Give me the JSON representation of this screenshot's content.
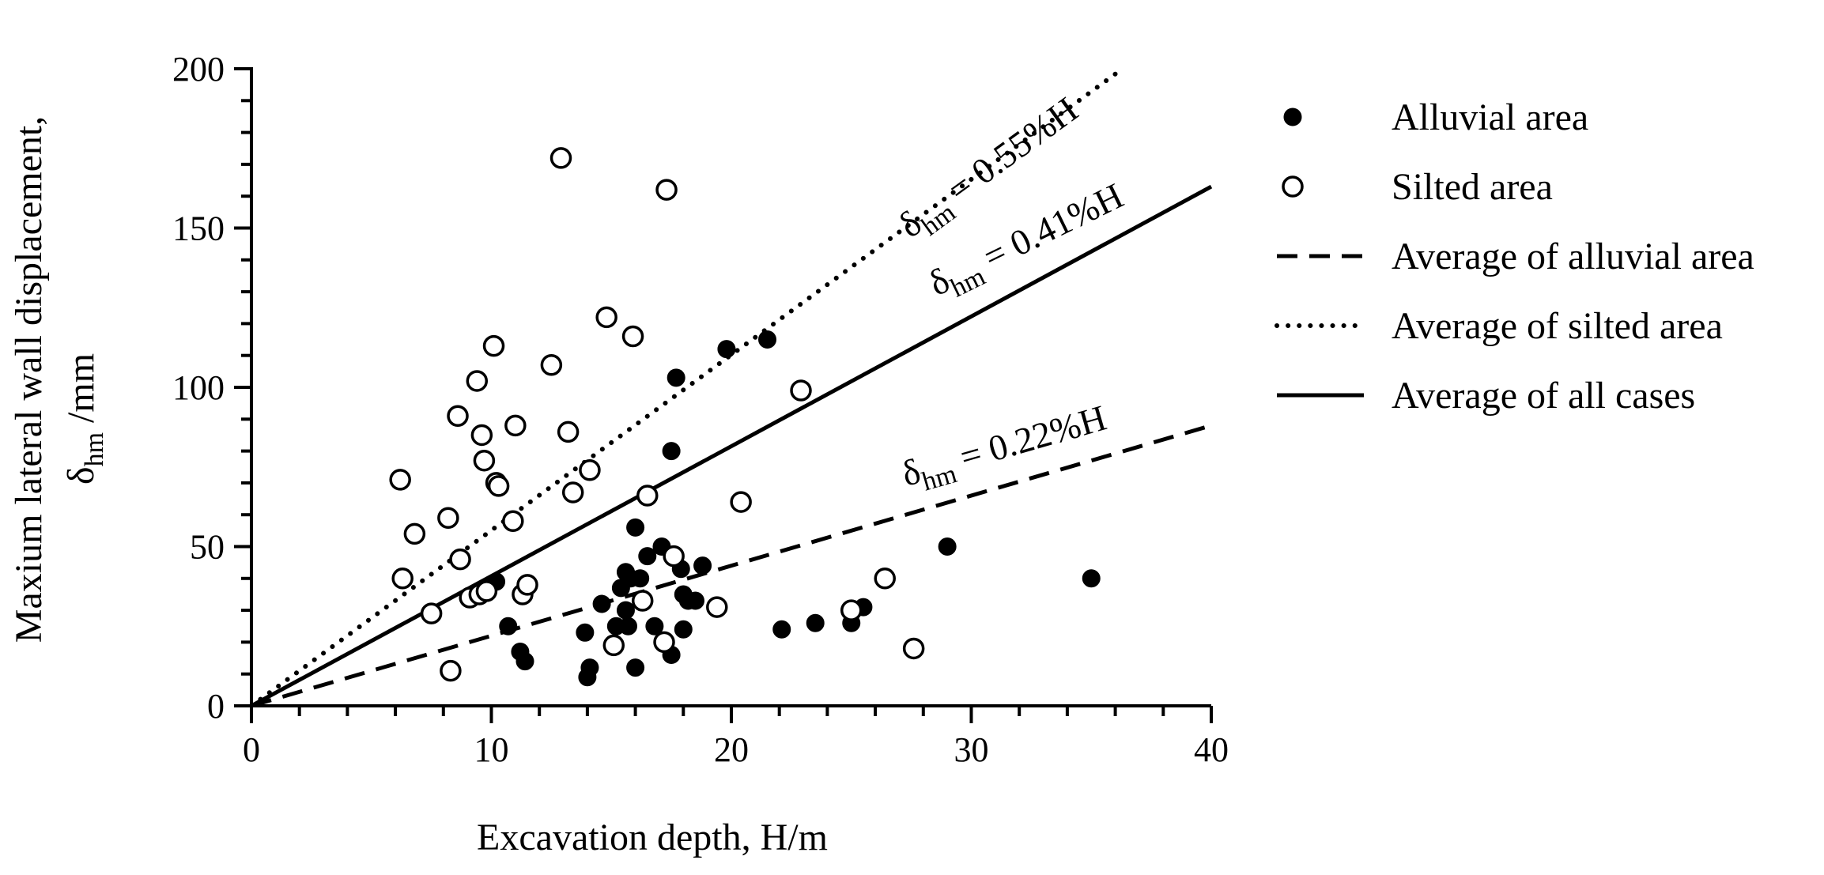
{
  "chart_data": {
    "type": "scatter",
    "xlabel": "Excavation depth,  H/m",
    "ylabel_line1": "Maxium lateral wall displacement,",
    "ylabel_symbol": "δ",
    "ylabel_sub": "hm",
    "ylabel_unit": " /mm",
    "xlim": [
      0,
      40
    ],
    "ylim": [
      0,
      200
    ],
    "x_ticks": [
      0,
      10,
      20,
      30,
      40
    ],
    "y_ticks": [
      0,
      50,
      100,
      150,
      200
    ],
    "x_tick_labels": [
      "0",
      "10",
      "20",
      "30",
      "40"
    ],
    "y_tick_labels": [
      "0",
      "50",
      "100",
      "150",
      "200"
    ],
    "x_minor_step": 2,
    "y_minor_step": 10,
    "grid": false,
    "legend_position": "right",
    "series": [
      {
        "name": "Alluvial area",
        "kind": "scatter",
        "marker": "filled-circle",
        "x": [
          10.2,
          10.7,
          11.2,
          11.4,
          13.9,
          14.0,
          14.1,
          14.6,
          15.2,
          15.4,
          15.6,
          15.6,
          15.7,
          15.8,
          16.0,
          16.0,
          16.2,
          16.5,
          16.8,
          17.1,
          17.5,
          17.5,
          17.7,
          17.9,
          18.0,
          18.0,
          18.2,
          18.5,
          18.8,
          19.8,
          21.5,
          22.1,
          23.5,
          25.0,
          25.5,
          29.0,
          35.0
        ],
        "y": [
          39,
          25,
          17,
          14,
          23,
          9,
          12,
          32,
          25,
          37,
          42,
          30,
          25,
          40,
          56,
          12,
          40,
          47,
          25,
          50,
          80,
          16,
          103,
          43,
          35,
          24,
          33,
          33,
          44,
          112,
          115,
          24,
          26,
          26,
          31,
          50,
          40
        ]
      },
      {
        "name": "Silted area",
        "kind": "scatter",
        "marker": "open-circle",
        "x": [
          6.2,
          6.3,
          6.8,
          7.5,
          8.2,
          8.3,
          8.6,
          8.7,
          9.1,
          9.4,
          9.5,
          9.6,
          9.7,
          9.8,
          10.1,
          10.2,
          10.3,
          10.9,
          11.0,
          11.3,
          11.5,
          12.5,
          12.9,
          13.2,
          13.4,
          14.1,
          14.8,
          15.1,
          15.9,
          16.3,
          16.5,
          17.2,
          17.3,
          17.6,
          19.4,
          20.4,
          22.9,
          25.0,
          26.4,
          27.6
        ],
        "y": [
          71,
          40,
          54,
          29,
          59,
          11,
          91,
          46,
          34,
          102,
          35,
          85,
          77,
          36,
          113,
          70,
          69,
          58,
          88,
          35,
          38,
          107,
          172,
          86,
          67,
          74,
          122,
          19,
          116,
          33,
          66,
          20,
          162,
          47,
          31,
          64,
          99,
          30,
          40,
          18
        ]
      },
      {
        "name": "Average of alluvial area",
        "kind": "line",
        "style": "dashed",
        "slope_percent": 0.22,
        "x": [
          0,
          40
        ],
        "y": [
          0,
          88
        ]
      },
      {
        "name": "Average of silted area",
        "kind": "line",
        "style": "dotted",
        "slope_percent": 0.55,
        "x": [
          0,
          36.3
        ],
        "y": [
          0,
          200
        ]
      },
      {
        "name": "Average of all cases",
        "kind": "line",
        "style": "solid",
        "slope_percent": 0.41,
        "x": [
          0,
          40
        ],
        "y": [
          0,
          163
        ]
      }
    ],
    "annotations": [
      {
        "name": "silted",
        "symbol": "δ",
        "sub": "hm",
        "text": " = 0.55%H",
        "x": 31,
        "y": 166,
        "angle_deg": -36
      },
      {
        "name": "all",
        "symbol": "δ",
        "sub": "hm",
        "text": " = 0.41%H",
        "x": 32.5,
        "y": 143,
        "angle_deg": -26
      },
      {
        "name": "alluvial",
        "symbol": "δ",
        "sub": "hm",
        "text": " = 0.22%H",
        "x": 31.5,
        "y": 78,
        "angle_deg": -16
      }
    ]
  }
}
